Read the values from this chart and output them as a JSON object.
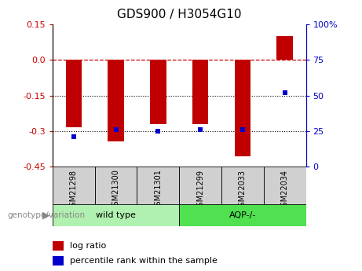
{
  "title": "GDS900 / H3054G10",
  "samples": [
    "GSM21298",
    "GSM21300",
    "GSM21301",
    "GSM21299",
    "GSM22033",
    "GSM22034"
  ],
  "log_ratios": [
    -0.285,
    -0.345,
    -0.27,
    -0.27,
    -0.405,
    0.1
  ],
  "percentile_ranks": [
    21,
    26,
    25,
    26,
    26,
    52
  ],
  "ylim_left": [
    -0.45,
    0.15
  ],
  "ylim_right": [
    0,
    100
  ],
  "left_ticks": [
    0.15,
    0.0,
    -0.15,
    -0.3,
    -0.45
  ],
  "right_ticks": [
    100,
    75,
    50,
    25,
    0
  ],
  "bar_color": "#c00000",
  "dot_color": "#0000cc",
  "wt_color": "#b0f0b0",
  "aqp_color": "#50e050",
  "label_gray": "#888888",
  "tick_bg": "#d0d0d0",
  "wildtype_label": "wild type",
  "aqp_label": "AQP-/-",
  "genotype_label": "genotype/variation",
  "legend_log_ratio": "log ratio",
  "legend_percentile": "percentile rank within the sample"
}
